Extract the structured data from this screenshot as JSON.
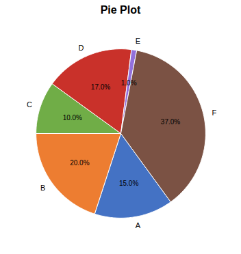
{
  "chart_data": {
    "type": "pie",
    "title": "Pie Plot",
    "categories": [
      "A",
      "B",
      "C",
      "D",
      "E",
      "F"
    ],
    "values": [
      15.0,
      20.0,
      10.0,
      17.0,
      1.0,
      37.0
    ],
    "value_labels": [
      "15.0%",
      "20.0%",
      "10.0%",
      "17.0%",
      "1.0%",
      "37.0%"
    ],
    "colors": [
      "#4472C4",
      "#ED7D31",
      "#70AD47",
      "#C9312A",
      "#9370DB",
      "#7B5244"
    ],
    "data_labels": true
  }
}
